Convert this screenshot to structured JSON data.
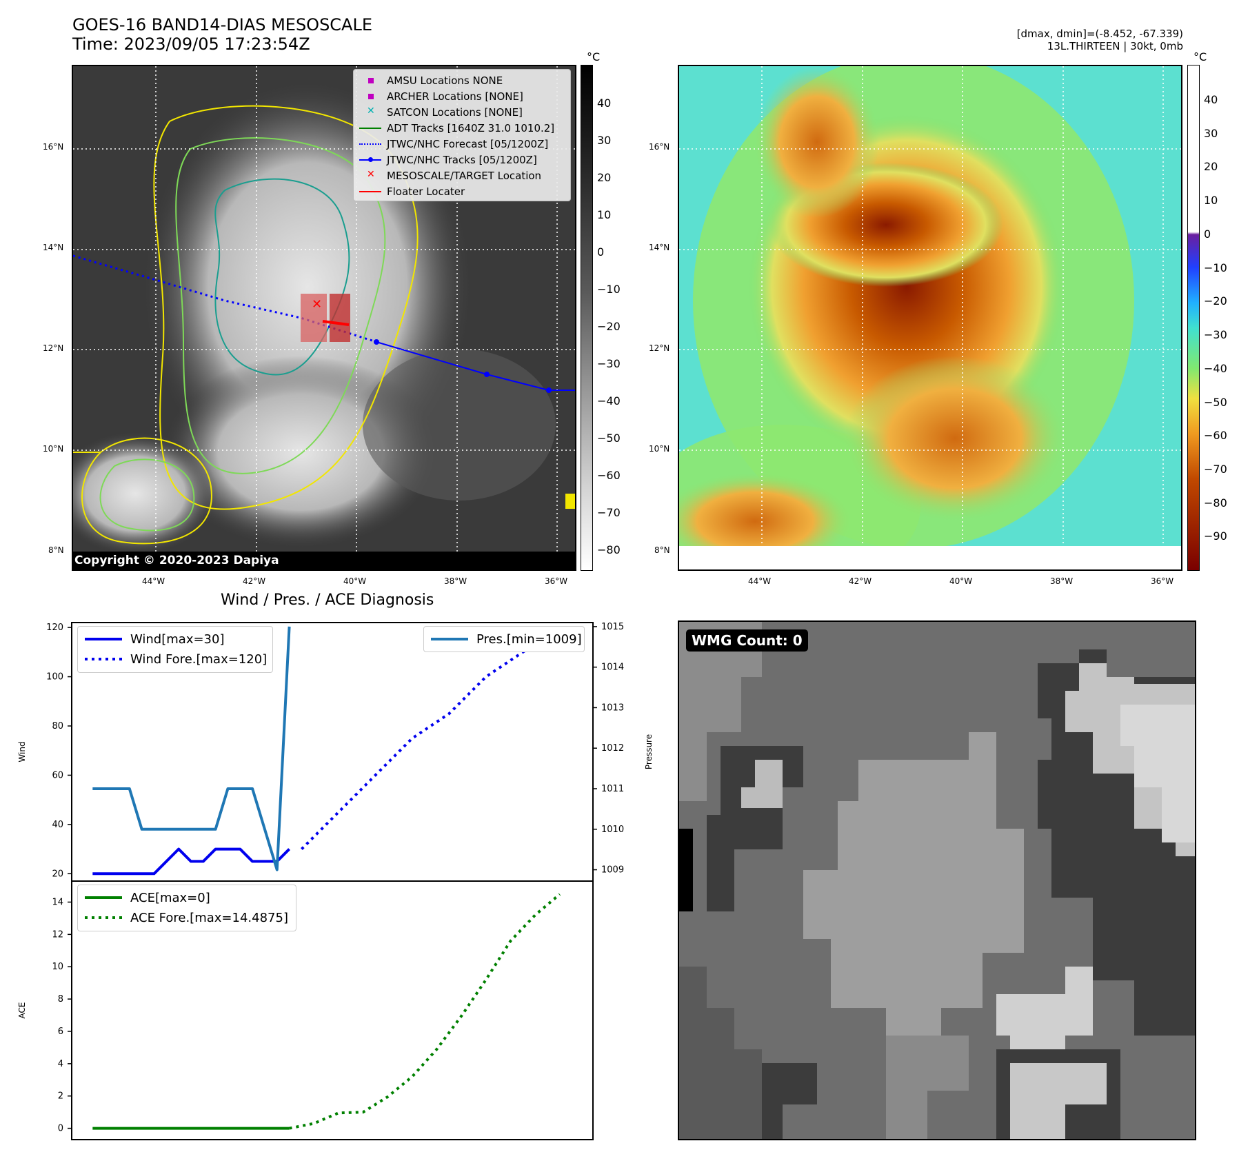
{
  "header": {
    "title_line1": "GOES-16 BAND14-DIAS MESOSCALE",
    "title_line2": "Time: 2023/09/05 17:23:54Z",
    "info_line1": "[dmax, dmin]=(-8.452, -67.339)",
    "info_line2": "13L.THIRTEEN | 30kt, 0mb"
  },
  "map_axes": {
    "lat_ticks": [
      "16°N",
      "14°N",
      "12°N",
      "10°N",
      "8°N"
    ],
    "lon_ticks": [
      "44°W",
      "42°W",
      "40°W",
      "38°W",
      "36°W"
    ]
  },
  "colorbar_left": {
    "unit": "°C",
    "ticks": [
      "40",
      "30",
      "20",
      "10",
      "0",
      "−10",
      "−20",
      "−30",
      "−40",
      "−50",
      "−60",
      "−70",
      "−80"
    ]
  },
  "colorbar_right": {
    "unit": "°C",
    "ticks": [
      "40",
      "30",
      "20",
      "10",
      "0",
      "−10",
      "−20",
      "−30",
      "−40",
      "−50",
      "−60",
      "−70",
      "−80",
      "−90"
    ]
  },
  "map_legend": [
    {
      "label": "AMSU Locations NONE",
      "symbol": "square",
      "color": "#c000c0"
    },
    {
      "label": "ARCHER Locations [NONE]",
      "symbol": "square",
      "color": "#c000c0"
    },
    {
      "label": "SATCON Locations [NONE]",
      "symbol": "x",
      "color": "#00b0b0"
    },
    {
      "label": "ADT Tracks [1640Z 31.0 1010.2]",
      "symbol": "line",
      "color": "#008000"
    },
    {
      "label": "JTWC/NHC Forecast [05/1200Z]",
      "symbol": "dotted",
      "color": "#0000ff"
    },
    {
      "label": "JTWC/NHC Tracks [05/1200Z]",
      "symbol": "line-dot",
      "color": "#0000ff"
    },
    {
      "label": "MESOSCALE/TARGET Location",
      "symbol": "x",
      "color": "#ff0000"
    },
    {
      "label": "Floater Locater",
      "symbol": "line",
      "color": "#ff0000"
    }
  ],
  "copyright": "Copyright © 2020-2023 Dapiya",
  "wmg_label": "WMG Count: 0",
  "diagnosis_title": "Wind / Pres. / ACE Diagnosis",
  "colors": {
    "wind": "#0000ee",
    "pressure": "#1f77b4",
    "ace": "#008000"
  },
  "chart_data": [
    {
      "type": "line",
      "ylabel": "Wind",
      "y2label": "Pressure",
      "ylim": [
        17,
        122
      ],
      "y2lim": [
        1008.72,
        1015.1
      ],
      "yticks": [
        20,
        40,
        60,
        80,
        100,
        120
      ],
      "y2ticks": [
        1009,
        1010,
        1011,
        1012,
        1013,
        1014,
        1015
      ],
      "series": [
        {
          "name": "Wind[max=30]",
          "style": "solid",
          "axis": "left",
          "x": [
            0,
            3,
            5,
            6,
            7,
            8,
            9,
            10,
            11,
            12,
            13,
            14,
            15,
            16
          ],
          "values": [
            20,
            20,
            20,
            25,
            30,
            25,
            25,
            30,
            30,
            30,
            25,
            25,
            25,
            30
          ]
        },
        {
          "name": "Wind Fore.[max=120]",
          "style": "dotted",
          "axis": "left",
          "x": [
            17,
            20,
            23,
            26,
            29,
            32,
            35,
            38
          ],
          "values": [
            30,
            45,
            60,
            75,
            85,
            100,
            110,
            120
          ]
        },
        {
          "name": "Pres.[min=1009]",
          "style": "solid",
          "axis": "right",
          "x": [
            0,
            3,
            4,
            5,
            6,
            7,
            8,
            9,
            10,
            11,
            12,
            13,
            14,
            15,
            16
          ],
          "values": [
            1011,
            1011,
            1010,
            1010,
            1010,
            1010,
            1010,
            1010,
            1010,
            1011,
            1011,
            1011,
            1010,
            1009,
            1015
          ]
        }
      ]
    },
    {
      "type": "line",
      "ylabel": "ACE",
      "ylim": [
        -0.7,
        15.3
      ],
      "yticks": [
        0,
        2,
        4,
        6,
        8,
        10,
        12,
        14
      ],
      "series": [
        {
          "name": "ACE[max=0]",
          "style": "solid",
          "x": [
            0,
            16
          ],
          "values": [
            0,
            0
          ]
        },
        {
          "name": "ACE Fore.[max=14.4875]",
          "style": "dotted",
          "x": [
            16,
            18,
            20,
            22,
            24,
            26,
            28,
            30,
            32,
            34,
            36,
            38
          ],
          "values": [
            0,
            0.3,
            0.95,
            1.0,
            1.95,
            3.2,
            4.9,
            6.95,
            9.2,
            11.6,
            13.2,
            14.4875
          ]
        }
      ]
    }
  ]
}
